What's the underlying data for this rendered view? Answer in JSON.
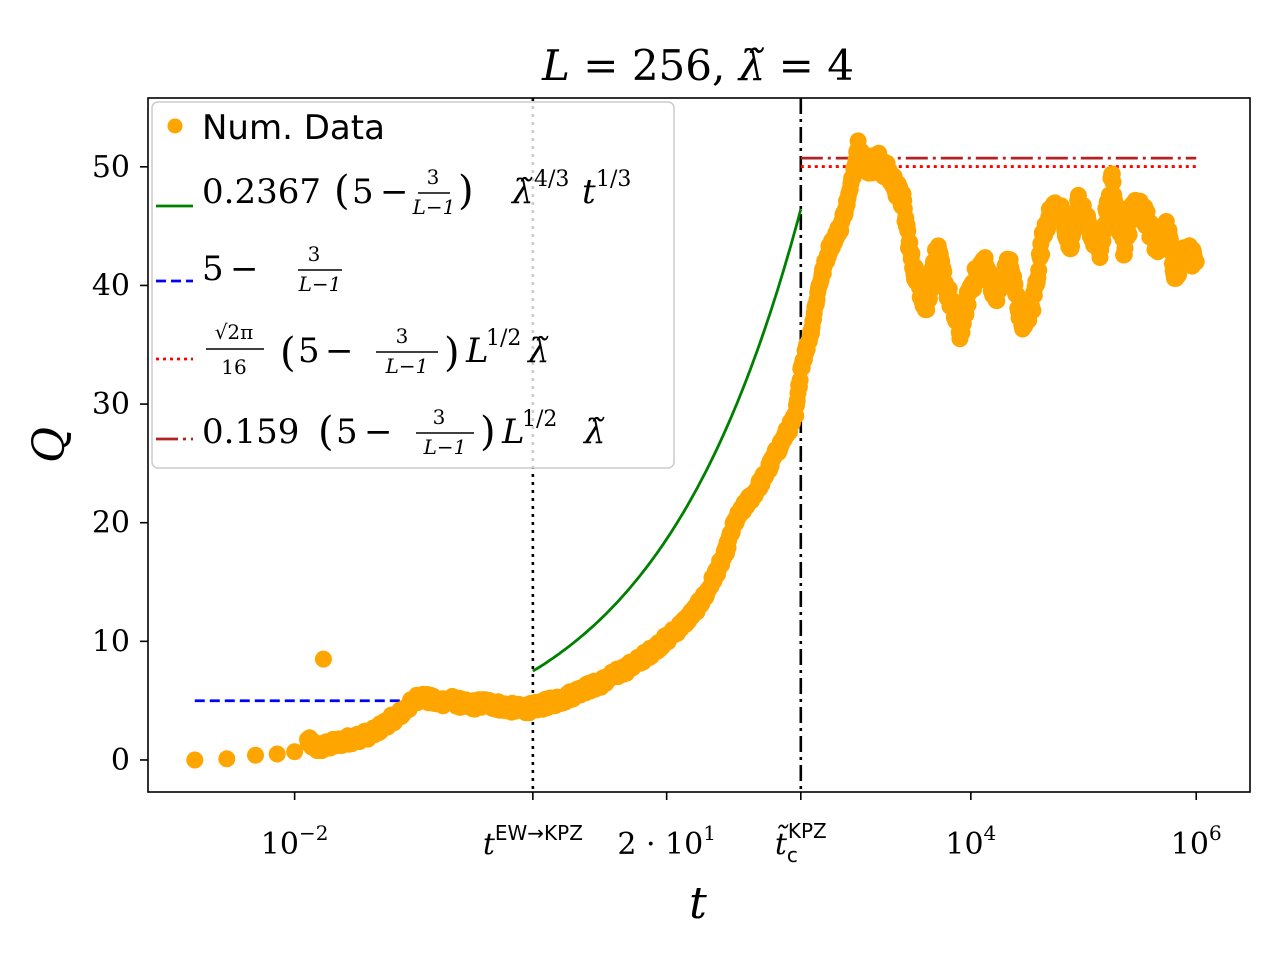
{
  "chart_data": {
    "type": "scatter",
    "title": "L = 256, λ̃ = 4",
    "xlabel": "t",
    "ylabel": "Q",
    "xscale": "log",
    "xlim": [
      0.0005,
      3000000
    ],
    "ylim": [
      -2.7,
      55.8
    ],
    "yticks": [
      0,
      10,
      20,
      30,
      40,
      50
    ],
    "xticks": [
      {
        "value": 0.01,
        "base": "10",
        "exp": "−2",
        "label": "10^−2"
      },
      {
        "value": 1.3,
        "base": "t",
        "exp": "EW→KPZ",
        "label": "t^EW→KPZ"
      },
      {
        "value": 20,
        "base": "2 · 10",
        "exp": "1",
        "label": "2 · 10^1"
      },
      {
        "value": 310,
        "base": "t̃",
        "sub": "c",
        "exp": "KPZ",
        "label": "t̃_c^KPZ"
      },
      {
        "value": 10000,
        "base": "10",
        "exp": "4",
        "label": "10^4"
      },
      {
        "value": 1000000,
        "base": "10",
        "exp": "6",
        "label": "10^6"
      }
    ],
    "vlines": [
      {
        "name": "t_EW_to_KPZ",
        "x": 1.3,
        "style": "dotted",
        "color": "#000000"
      },
      {
        "name": "t_c_KPZ",
        "x": 310,
        "style": "dashdot",
        "color": "#000000"
      }
    ],
    "series": [
      {
        "name": "Num. Data",
        "kind": "scatter",
        "color": "#ffa500",
        "points": [
          [
            0.0013,
            0.0
          ],
          [
            0.0025,
            0.1
          ],
          [
            0.0045,
            0.4
          ],
          [
            0.007,
            0.5
          ],
          [
            0.01,
            0.7
          ],
          [
            0.013,
            1.6
          ],
          [
            0.016,
            1.0
          ],
          [
            0.025,
            1.5
          ],
          [
            0.04,
            2.0
          ],
          [
            0.05,
            2.3
          ],
          [
            0.07,
            3.3
          ],
          [
            0.09,
            4.0
          ],
          [
            0.11,
            4.8
          ],
          [
            0.13,
            5.4
          ],
          [
            0.18,
            4.9
          ],
          [
            0.25,
            5.0
          ],
          [
            0.35,
            4.6
          ],
          [
            0.5,
            4.8
          ],
          [
            0.7,
            4.5
          ],
          [
            1.0,
            4.3
          ],
          [
            1.3,
            4.4
          ],
          [
            1.8,
            4.8
          ],
          [
            2.5,
            5.2
          ],
          [
            3.5,
            5.9
          ],
          [
            5.0,
            6.4
          ],
          [
            7.0,
            7.2
          ],
          [
            10,
            8.0
          ],
          [
            14,
            9.0
          ],
          [
            20,
            10.2
          ],
          [
            28,
            11.5
          ],
          [
            35,
            12.5
          ],
          [
            45,
            14.0
          ],
          [
            55,
            15.8
          ],
          [
            65,
            17.2
          ],
          [
            80,
            20.0
          ],
          [
            100,
            21.5
          ],
          [
            120,
            22.5
          ],
          [
            150,
            24.0
          ],
          [
            190,
            26.0
          ],
          [
            230,
            27.5
          ],
          [
            280,
            29.0
          ],
          [
            310,
            33.0
          ],
          [
            380,
            36.0
          ],
          [
            450,
            40.0
          ],
          [
            550,
            43.0
          ],
          [
            700,
            45.0
          ],
          [
            850,
            48.0
          ],
          [
            1000,
            52.0
          ],
          [
            1200,
            50.0
          ],
          [
            1500,
            50.5
          ],
          [
            2000,
            49.0
          ],
          [
            2500,
            47.0
          ],
          [
            3000,
            42.0
          ],
          [
            3500,
            40.0
          ],
          [
            4000,
            38.0
          ],
          [
            5000,
            43.0
          ],
          [
            6000,
            40.0
          ],
          [
            8000,
            36.0
          ],
          [
            10000,
            40.0
          ],
          [
            13000,
            42.0
          ],
          [
            17000,
            39.0
          ],
          [
            22000,
            42.0
          ],
          [
            28000,
            37.0
          ],
          [
            35000,
            38.0
          ],
          [
            45000,
            45.0
          ],
          [
            60000,
            47.0
          ],
          [
            75000,
            43.0
          ],
          [
            90000,
            47.0
          ],
          [
            110000,
            45.0
          ],
          [
            140000,
            43.0
          ],
          [
            180000,
            49.0
          ],
          [
            230000,
            43.0
          ],
          [
            280000,
            47.0
          ],
          [
            350000,
            46.0
          ],
          [
            450000,
            43.0
          ],
          [
            550000,
            45.0
          ],
          [
            650000,
            41.0
          ],
          [
            800000,
            43.0
          ],
          [
            1000000,
            42.0
          ]
        ],
        "outliers": [
          [
            0.018,
            8.5
          ]
        ]
      },
      {
        "name": "0.2367 (5 − 3/(L−1)) λ̃^(4/3) t^(1/3)",
        "kind": "line",
        "style": "solid",
        "color": "#008000",
        "coefficient": 0.2367,
        "x_range": [
          1.3,
          310
        ]
      },
      {
        "name": "5 − 3/(L−1)",
        "kind": "hline",
        "style": "dashed",
        "color": "#0000ff",
        "y": 4.99,
        "x_range": [
          0.0013,
          1.3
        ]
      },
      {
        "name": "(√(2π)/16) (5 − 3/(L−1)) L^(1/2) λ̃",
        "kind": "hline",
        "style": "dotted",
        "color": "#ff0000",
        "y": 50.02,
        "x_range": [
          310,
          1000000
        ]
      },
      {
        "name": "0.159 (5 − 3/(L−1)) L^(1/2) λ̃",
        "kind": "hline",
        "style": "dashdot",
        "color": "#b22222",
        "y": 50.73,
        "x_range": [
          310,
          1000000
        ]
      }
    ],
    "legend": {
      "position": "upper-left",
      "entries": [
        {
          "name": "Num. Data",
          "marker": "dot",
          "color": "#ffa500",
          "text": "Num. Data"
        },
        {
          "name": "green",
          "color": "#008000",
          "style": "solid",
          "coef": "0.2367",
          "five": "5",
          "minus": "−",
          "num": "3",
          "den": "L−1",
          "lam": "λ̃",
          "lam_exp": "4/3",
          "t": "t",
          "t_exp": "1/3"
        },
        {
          "name": "blue",
          "color": "#0000ff",
          "style": "dashed",
          "five": "5",
          "minus": "−",
          "num": "3",
          "den": "L−1"
        },
        {
          "name": "red",
          "color": "#ff0000",
          "style": "dotted",
          "pref_num": "√2π",
          "pref_den": "16",
          "five": "5",
          "minus": "−",
          "num": "3",
          "den": "L−1",
          "L": "L",
          "L_exp": "1/2",
          "lam": "λ̃"
        },
        {
          "name": "brown",
          "color": "#b22222",
          "style": "dashdot",
          "coef": "0.159",
          "five": "5",
          "minus": "−",
          "num": "3",
          "den": "L−1",
          "L": "L",
          "L_exp": "1/2",
          "lam": "λ̃"
        }
      ]
    }
  }
}
